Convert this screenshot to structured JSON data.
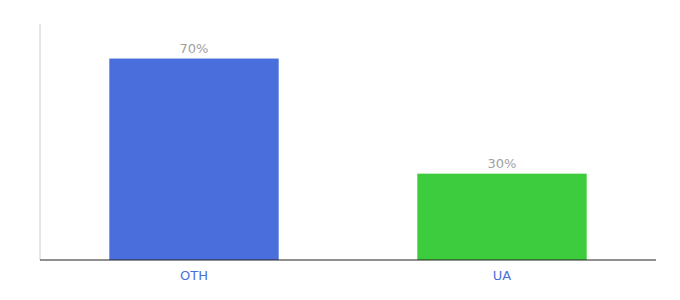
{
  "chart_data": {
    "type": "bar",
    "categories": [
      "OTH",
      "UA"
    ],
    "values": [
      70,
      30
    ],
    "value_labels": [
      "70%",
      "30%"
    ],
    "colors": [
      "#4a6fdc",
      "#3dcc3d"
    ],
    "ylim": [
      0,
      82
    ],
    "yticks": [],
    "data_labels": true,
    "tick_labels": "x",
    "grid": false
  }
}
